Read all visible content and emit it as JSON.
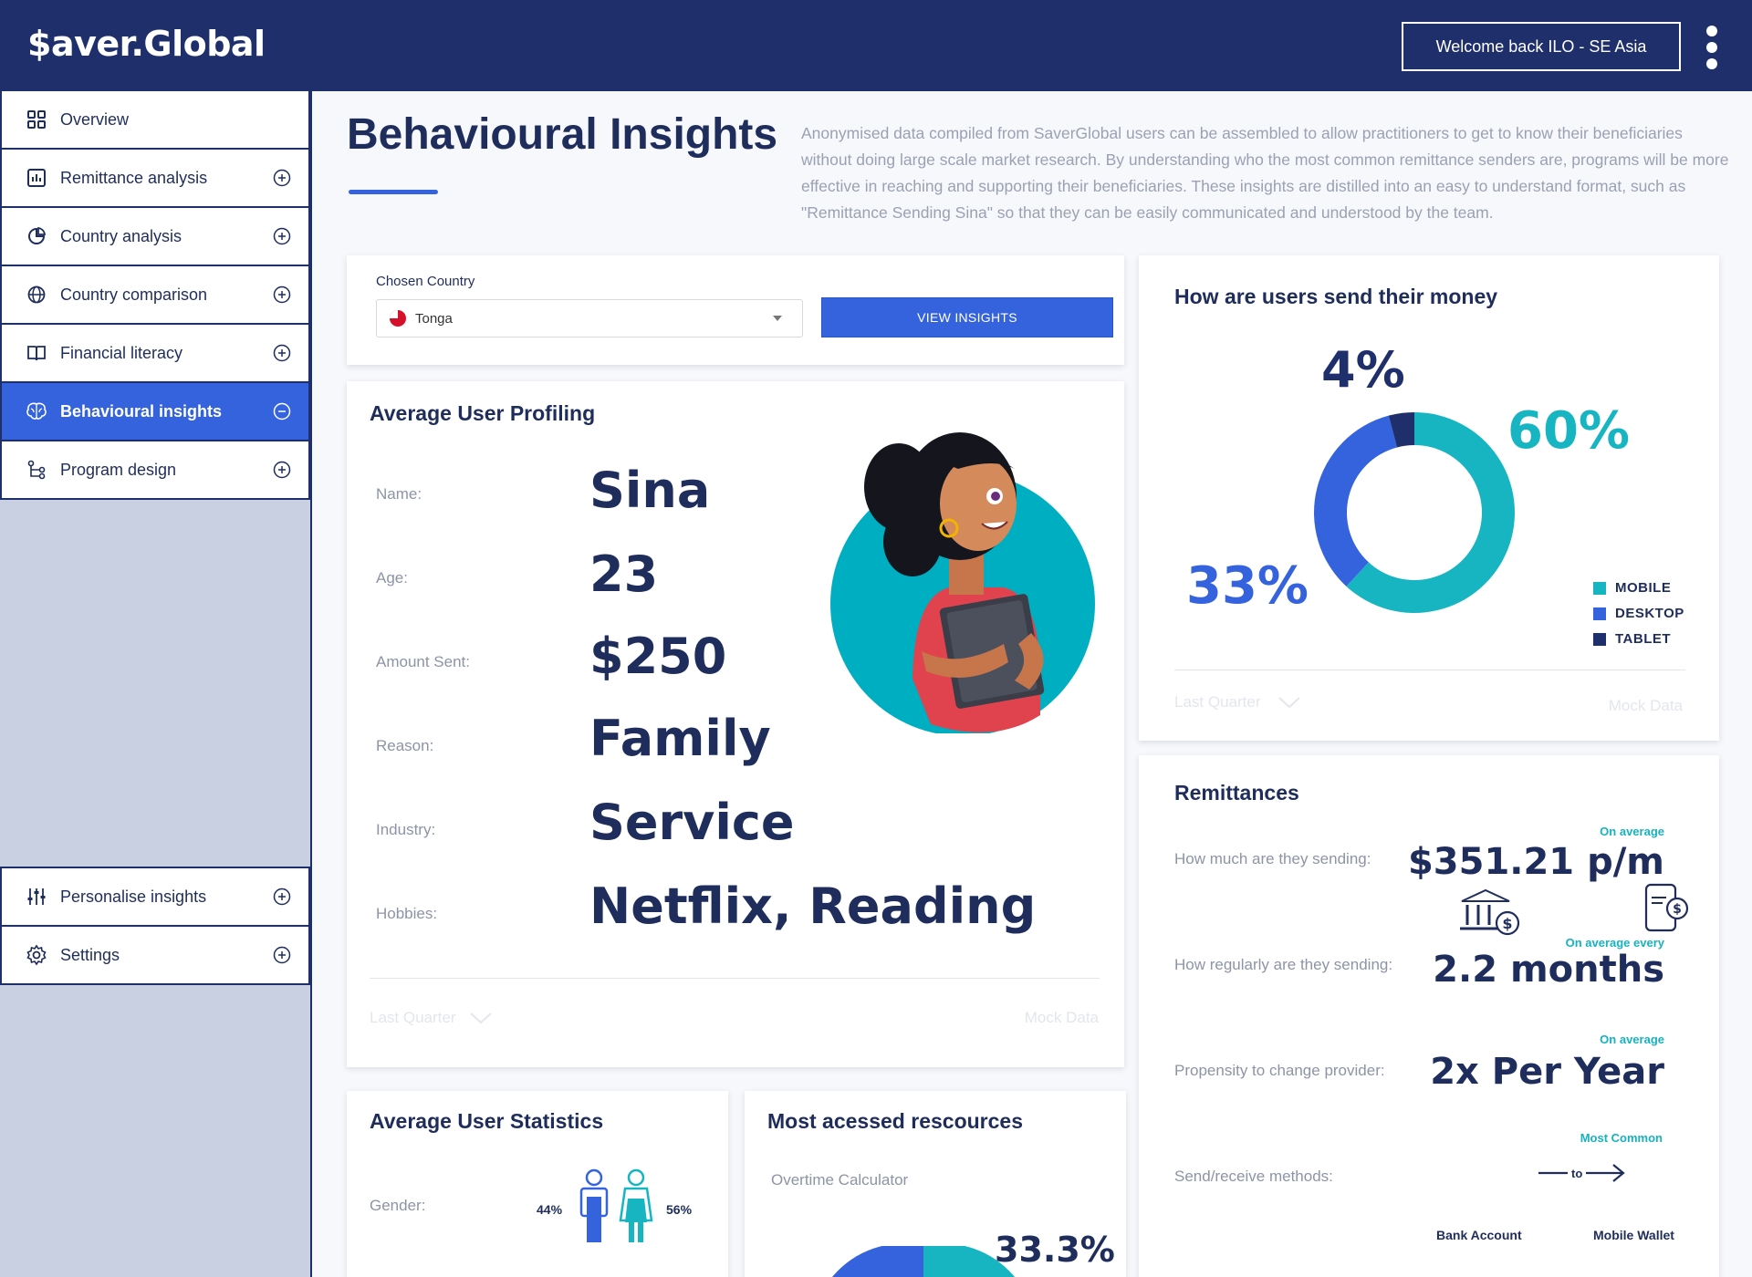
{
  "header": {
    "logo": "$aver.Global",
    "welcome": "Welcome back ILO - SE Asia"
  },
  "sidebar": {
    "items": [
      {
        "label": "Overview",
        "icon": "grid-icon"
      },
      {
        "label": "Remittance analysis",
        "icon": "bar-chart-icon"
      },
      {
        "label": "Country analysis",
        "icon": "pie-chart-icon"
      },
      {
        "label": "Country comparison",
        "icon": "globe-icon"
      },
      {
        "label": "Financial literacy",
        "icon": "book-icon"
      },
      {
        "label": "Behavioural insights",
        "icon": "brain-icon",
        "active": true
      },
      {
        "label": "Program design",
        "icon": "flow-icon"
      }
    ],
    "bottom_items": [
      {
        "label": "Personalise insights",
        "icon": "sliders-icon"
      },
      {
        "label": "Settings",
        "icon": "gear-icon"
      }
    ]
  },
  "page": {
    "title": "Behavioural Insights",
    "intro": "Anonymised data compiled from SaverGlobal users can be assembled to allow practitioners to get to know their beneficiaries without doing large scale market research. By understanding who the most common remittance senders are, programs will be more effective in reaching and supporting their beneficiaries. These insights are distilled into an easy to understand format, such as \"Remittance Sending Sina\" so that they can be easily communicated and understood by the team."
  },
  "country": {
    "label": "Chosen Country",
    "selected": "Tonga",
    "button": "VIEW INSIGHTS"
  },
  "profile": {
    "title": "Average User Profiling",
    "rows": [
      {
        "label": "Name:",
        "value": "Sina"
      },
      {
        "label": "Age:",
        "value": "23"
      },
      {
        "label": "Amount Sent:",
        "value": "$250"
      },
      {
        "label": "Reason:",
        "value": "Family"
      },
      {
        "label": "Industry:",
        "value": "Service"
      },
      {
        "label": "Hobbies:",
        "value": "Netflix, Reading"
      }
    ],
    "period": "Last Quarter",
    "source": "Mock Data"
  },
  "devices": {
    "title": "How are users send their money",
    "labels": {
      "mobile": "60%",
      "desktop": "33%",
      "tablet": "4%"
    },
    "legend": [
      "MOBILE",
      "DESKTOP",
      "TABLET"
    ],
    "colors": {
      "mobile": "#17b5c2",
      "desktop": "#3563dd",
      "tablet": "#1f2f6b"
    },
    "period": "Last Quarter",
    "source": "Mock Data"
  },
  "chart_data": {
    "type": "pie",
    "categories": [
      "MOBILE",
      "DESKTOP",
      "TABLET"
    ],
    "values": [
      60,
      33,
      4
    ],
    "title": "How are users send their money",
    "legend": "right"
  },
  "remittances": {
    "title": "Remittances",
    "rows": [
      {
        "question": "How much are they sending:",
        "note": "On average",
        "value": "$351.21 p/m"
      },
      {
        "question": "How regularly are they sending:",
        "note": "On average every",
        "value": "2.2 months"
      },
      {
        "question": "Propensity to change provider:",
        "note": "On average",
        "value": "2x Per Year"
      },
      {
        "question": "Send/receive methods:",
        "note": "Most Common",
        "value": ""
      }
    ],
    "arrow_to": "to",
    "method_from": "Bank Account",
    "method_to": "Mobile Wallet"
  },
  "stats": {
    "title": "Average User Statistics",
    "gender_label": "Gender:",
    "male_pct": "44%",
    "female_pct": "56%"
  },
  "resources": {
    "title": "Most acessed rescources",
    "item": "Overtime Calculator",
    "pct": "33.3%"
  }
}
